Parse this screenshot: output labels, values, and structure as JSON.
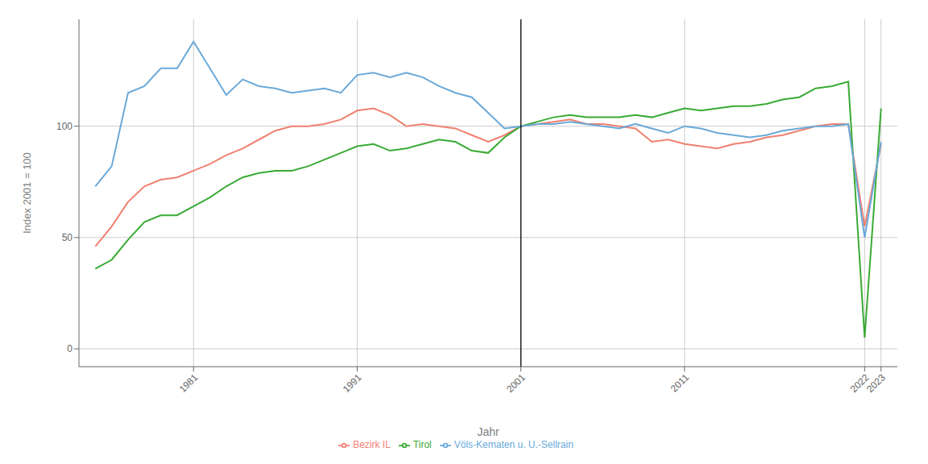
{
  "chart_data": {
    "type": "line",
    "title": "",
    "xlabel": "Jahr",
    "ylabel": "Index 2001 = 100",
    "x": [
      1975,
      1976,
      1977,
      1978,
      1979,
      1980,
      1981,
      1982,
      1983,
      1984,
      1985,
      1986,
      1987,
      1988,
      1989,
      1990,
      1991,
      1992,
      1993,
      1994,
      1995,
      1996,
      1997,
      1998,
      1999,
      2000,
      2001,
      2002,
      2003,
      2004,
      2005,
      2006,
      2007,
      2008,
      2009,
      2010,
      2011,
      2012,
      2013,
      2014,
      2015,
      2016,
      2017,
      2018,
      2019,
      2020,
      2021,
      2022,
      2023
    ],
    "series": [
      {
        "name": "Bezirk IL",
        "color": "#f08070",
        "values": [
          46,
          55,
          66,
          73,
          76,
          77,
          80,
          83,
          87,
          90,
          94,
          98,
          100,
          100,
          101,
          103,
          107,
          108,
          105,
          100,
          101,
          100,
          99,
          96,
          93,
          96,
          100,
          101,
          102,
          103,
          101,
          101,
          100,
          99,
          93,
          94,
          92,
          91,
          90,
          92,
          93,
          95,
          96,
          98,
          100,
          101,
          101,
          55,
          92
        ]
      },
      {
        "name": "Tirol",
        "color": "#3aaa35",
        "values": [
          36,
          40,
          49,
          57,
          60,
          60,
          64,
          68,
          73,
          77,
          79,
          80,
          80,
          82,
          85,
          88,
          91,
          92,
          89,
          90,
          92,
          94,
          93,
          89,
          88,
          95,
          100,
          102,
          104,
          105,
          104,
          104,
          104,
          105,
          104,
          106,
          108,
          107,
          108,
          109,
          109,
          110,
          112,
          113,
          117,
          118,
          120,
          5,
          108
        ]
      },
      {
        "name": "Völs-Kematen u. U.-Sellrain",
        "color": "#6aa9d8",
        "values": [
          73,
          82,
          115,
          118,
          126,
          126,
          138,
          126,
          114,
          121,
          118,
          117,
          115,
          116,
          117,
          115,
          123,
          124,
          122,
          124,
          122,
          118,
          115,
          113,
          106,
          99,
          100,
          101,
          101,
          102,
          101,
          100,
          99,
          101,
          99,
          97,
          100,
          99,
          97,
          96,
          95,
          96,
          98,
          99,
          100,
          100,
          101,
          50,
          93
        ]
      }
    ],
    "xlim": [
      1974,
      2024
    ],
    "xticks": [
      1981,
      1991,
      2001,
      2011,
      2022,
      2023
    ],
    "ylim": [
      -8,
      148
    ],
    "yticks": [
      0,
      50,
      100
    ],
    "vline": 2001,
    "grid": true,
    "legend": "bottom"
  }
}
